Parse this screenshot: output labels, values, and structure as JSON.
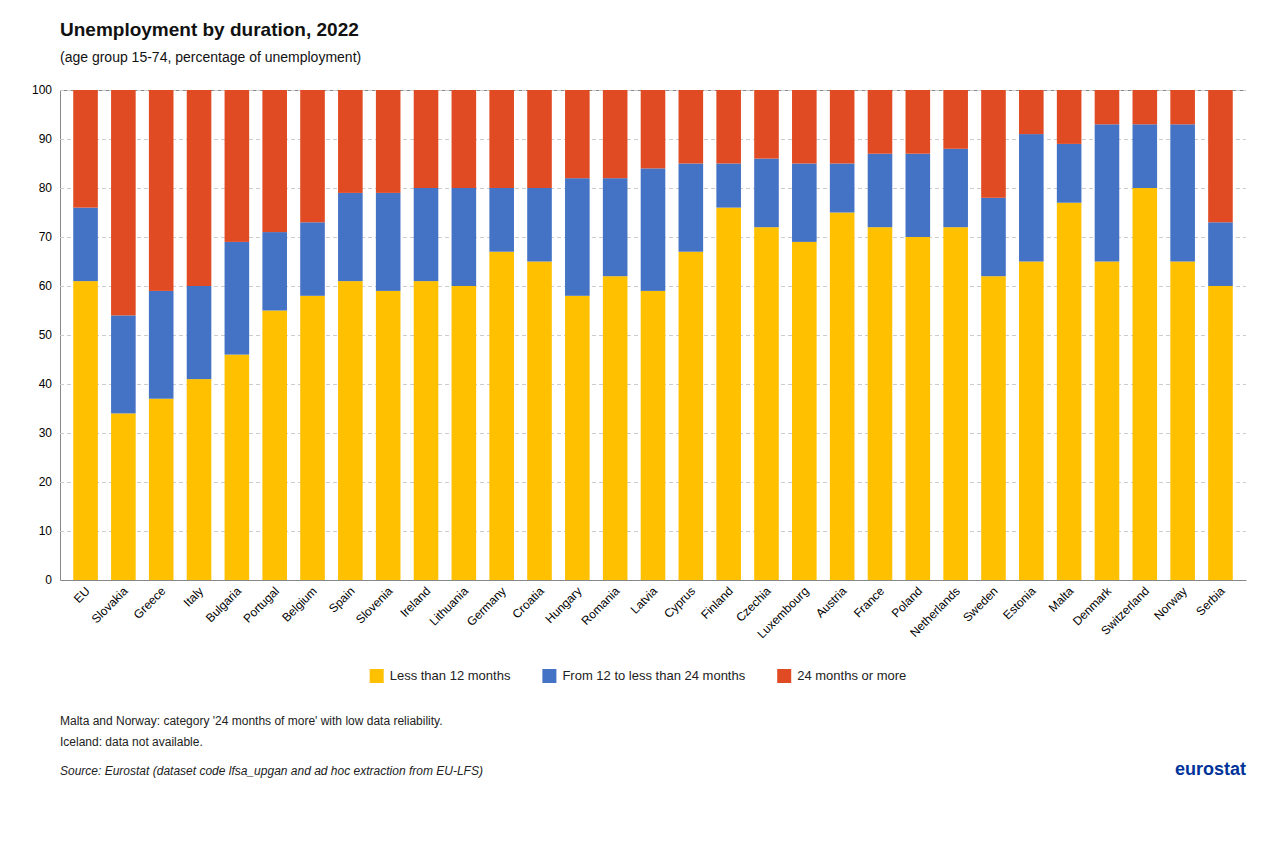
{
  "chart_data": {
    "type": "bar",
    "stacked": true,
    "title": "Unemployment by duration, 2022",
    "subtitle": "(age group 15-74, percentage of unemployment)",
    "categories": [
      "EU",
      "Slovakia",
      "Greece",
      "Italy",
      "Bulgaria",
      "Portugal",
      "Belgium",
      "Spain",
      "Slovenia",
      "Ireland",
      "Lithuania",
      "Germany",
      "Croatia",
      "Hungary",
      "Romania",
      "Latvia",
      "Cyprus",
      "Finland",
      "Czechia",
      "Luxembourg",
      "Austria",
      "France",
      "Poland",
      "Netherlands",
      "Sweden",
      "Estonia",
      "Malta",
      "Denmark",
      "Switzerland",
      "Norway",
      "Serbia"
    ],
    "series": [
      {
        "name": "Less than 12 months",
        "color": "#FFC000",
        "values": [
          61,
          34,
          37,
          41,
          46,
          55,
          58,
          61,
          59,
          61,
          60,
          67,
          65,
          58,
          62,
          59,
          67,
          76,
          72,
          69,
          75,
          72,
          70,
          72,
          62,
          65,
          77,
          65,
          80,
          65,
          60
        ]
      },
      {
        "name": "From 12 to less than 24 months",
        "color": "#4472C4",
        "values": [
          15,
          20,
          22,
          19,
          23,
          16,
          15,
          18,
          20,
          19,
          20,
          13,
          15,
          24,
          20,
          25,
          18,
          9,
          14,
          16,
          10,
          15,
          17,
          16,
          16,
          26,
          12,
          28,
          13,
          28,
          13
        ]
      },
      {
        "name": "24 months or more",
        "color": "#E04B23",
        "values": [
          24,
          46,
          41,
          40,
          31,
          29,
          27,
          21,
          21,
          20,
          20,
          20,
          20,
          18,
          18,
          16,
          15,
          15,
          14,
          15,
          15,
          13,
          13,
          12,
          22,
          9,
          11,
          7,
          7,
          7,
          27
        ]
      }
    ],
    "ylim": [
      0,
      100
    ],
    "yticks": [
      0,
      10,
      20,
      30,
      40,
      50,
      60,
      70,
      80,
      90,
      100
    ],
    "grid": true,
    "legend": "bottom",
    "annotations": [
      "Malta and Norway:  category '24 months of more' with low data reliability.",
      "Iceland:  data not available.",
      "Source: Eurostat (dataset code lfsa_upgan and ad hoc extraction from EU-LFS)",
      "eurostat"
    ]
  }
}
